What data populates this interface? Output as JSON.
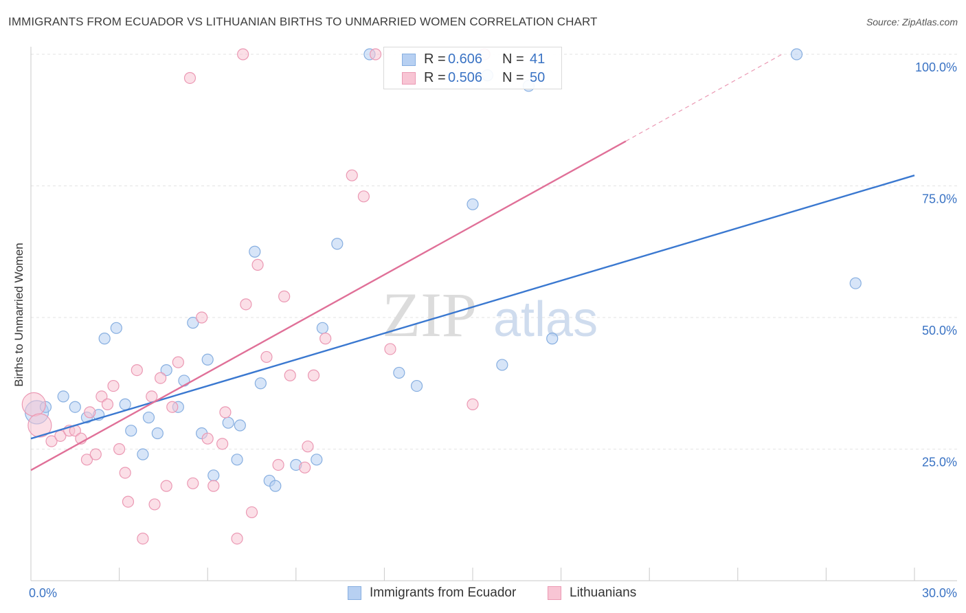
{
  "title": "IMMIGRANTS FROM ECUADOR VS LITHUANIAN BIRTHS TO UNMARRIED WOMEN CORRELATION CHART",
  "source": "Source: ZipAtlas.com",
  "watermark": {
    "zip": "ZIP",
    "atlas": "atlas"
  },
  "legend_top": [
    {
      "r_label": "R = ",
      "r_value": "0.606",
      "n_label": "N = ",
      "n_value": "41",
      "fill": "#b7d0f2",
      "stroke": "#86aee0"
    },
    {
      "r_label": "R = ",
      "r_value": "0.506",
      "n_label": "N = ",
      "n_value": "50",
      "fill": "#f8c5d4",
      "stroke": "#eb98b3"
    }
  ],
  "legend_bottom": [
    {
      "label": "Immigrants from Ecuador",
      "fill": "#b7d0f2",
      "stroke": "#86aee0"
    },
    {
      "label": "Lithuanians",
      "fill": "#f8c5d4",
      "stroke": "#eb98b3"
    }
  ],
  "chart_data": {
    "type": "scatter",
    "title": "IMMIGRANTS FROM ECUADOR VS LITHUANIAN BIRTHS TO UNMARRIED WOMEN CORRELATION CHART",
    "xlabel": "",
    "ylabel": "Births to Unmarried Women",
    "xlim": [
      0,
      30
    ],
    "ylim": [
      0,
      100
    ],
    "x_tick_labels": [
      "0.0%",
      "30.0%"
    ],
    "y_tick_labels": [
      {
        "value": 100,
        "label": "100.0%"
      },
      {
        "value": 75,
        "label": "75.0%"
      },
      {
        "value": 50,
        "label": "50.0%"
      },
      {
        "value": 25,
        "label": "25.0%"
      }
    ],
    "grid": true,
    "legend_position": "top-center",
    "series": [
      {
        "name": "Immigrants from Ecuador",
        "color": "#3a78d0",
        "fill": "#b7d0f2",
        "stroke": "#86aee0",
        "trend": {
          "x": [
            0,
            30
          ],
          "y": [
            27.0,
            77.0
          ]
        },
        "points": [
          [
            0.2,
            32,
            "big"
          ],
          [
            0.5,
            33
          ],
          [
            1.1,
            35
          ],
          [
            1.5,
            33
          ],
          [
            1.9,
            31
          ],
          [
            2.3,
            31.5
          ],
          [
            2.5,
            46
          ],
          [
            2.9,
            48
          ],
          [
            3.2,
            33.5
          ],
          [
            3.4,
            28.5
          ],
          [
            3.8,
            24
          ],
          [
            4.0,
            31
          ],
          [
            4.3,
            28
          ],
          [
            4.6,
            40
          ],
          [
            5.0,
            33
          ],
          [
            5.2,
            38
          ],
          [
            5.5,
            49
          ],
          [
            5.8,
            28
          ],
          [
            6.0,
            42
          ],
          [
            6.2,
            20
          ],
          [
            6.7,
            30
          ],
          [
            7.0,
            23
          ],
          [
            7.1,
            29.5
          ],
          [
            7.6,
            62.5
          ],
          [
            7.8,
            37.5
          ],
          [
            8.1,
            19
          ],
          [
            8.3,
            18
          ],
          [
            9.0,
            22
          ],
          [
            9.7,
            23
          ],
          [
            9.9,
            48
          ],
          [
            10.4,
            64
          ],
          [
            12.5,
            39.5
          ],
          [
            13.1,
            37
          ],
          [
            15.0,
            71.5
          ],
          [
            16.0,
            41
          ],
          [
            16.9,
            94
          ],
          [
            17.7,
            46
          ],
          [
            26.0,
            100
          ],
          [
            28.0,
            56.5
          ],
          [
            15.5,
            96
          ],
          [
            11.5,
            100
          ]
        ]
      },
      {
        "name": "Lithuanians",
        "color": "#e07098",
        "fill": "#f8c5d4",
        "stroke": "#eb98b3",
        "trend": {
          "x": [
            0,
            20.2
          ],
          "y": [
            21.0,
            83.5
          ]
        },
        "trend_dashed": {
          "x": [
            20.2,
            25.5
          ],
          "y": [
            83.5,
            100.0
          ]
        },
        "points": [
          [
            0.1,
            33.5,
            "big"
          ],
          [
            0.3,
            29.5,
            "big"
          ],
          [
            0.7,
            26.5
          ],
          [
            1.0,
            27.5
          ],
          [
            1.3,
            28.5
          ],
          [
            1.5,
            28.5
          ],
          [
            1.7,
            27
          ],
          [
            1.9,
            23
          ],
          [
            2.0,
            32
          ],
          [
            2.2,
            24
          ],
          [
            2.4,
            35
          ],
          [
            2.6,
            33.5
          ],
          [
            2.8,
            37
          ],
          [
            3.0,
            25
          ],
          [
            3.2,
            20.5
          ],
          [
            3.3,
            15
          ],
          [
            3.6,
            40
          ],
          [
            3.8,
            8
          ],
          [
            4.1,
            35
          ],
          [
            4.2,
            14.5
          ],
          [
            4.4,
            38.5
          ],
          [
            4.6,
            18
          ],
          [
            4.8,
            33
          ],
          [
            5.0,
            41.5
          ],
          [
            5.4,
            95.5
          ],
          [
            5.5,
            18.5
          ],
          [
            5.8,
            50
          ],
          [
            6.0,
            27
          ],
          [
            6.2,
            18
          ],
          [
            6.5,
            26
          ],
          [
            6.6,
            32
          ],
          [
            7.0,
            8
          ],
          [
            7.2,
            100
          ],
          [
            7.3,
            52.5
          ],
          [
            7.5,
            13
          ],
          [
            7.7,
            60
          ],
          [
            8.0,
            42.5
          ],
          [
            8.4,
            22
          ],
          [
            8.6,
            54
          ],
          [
            8.8,
            39
          ],
          [
            9.4,
            25.5
          ],
          [
            9.6,
            39
          ],
          [
            10.9,
            77
          ],
          [
            11.3,
            73
          ],
          [
            11.7,
            100
          ],
          [
            15.0,
            33.5
          ],
          [
            15.4,
            100
          ],
          [
            10.0,
            46
          ],
          [
            12.2,
            44
          ],
          [
            9.3,
            21.5
          ]
        ]
      }
    ]
  }
}
